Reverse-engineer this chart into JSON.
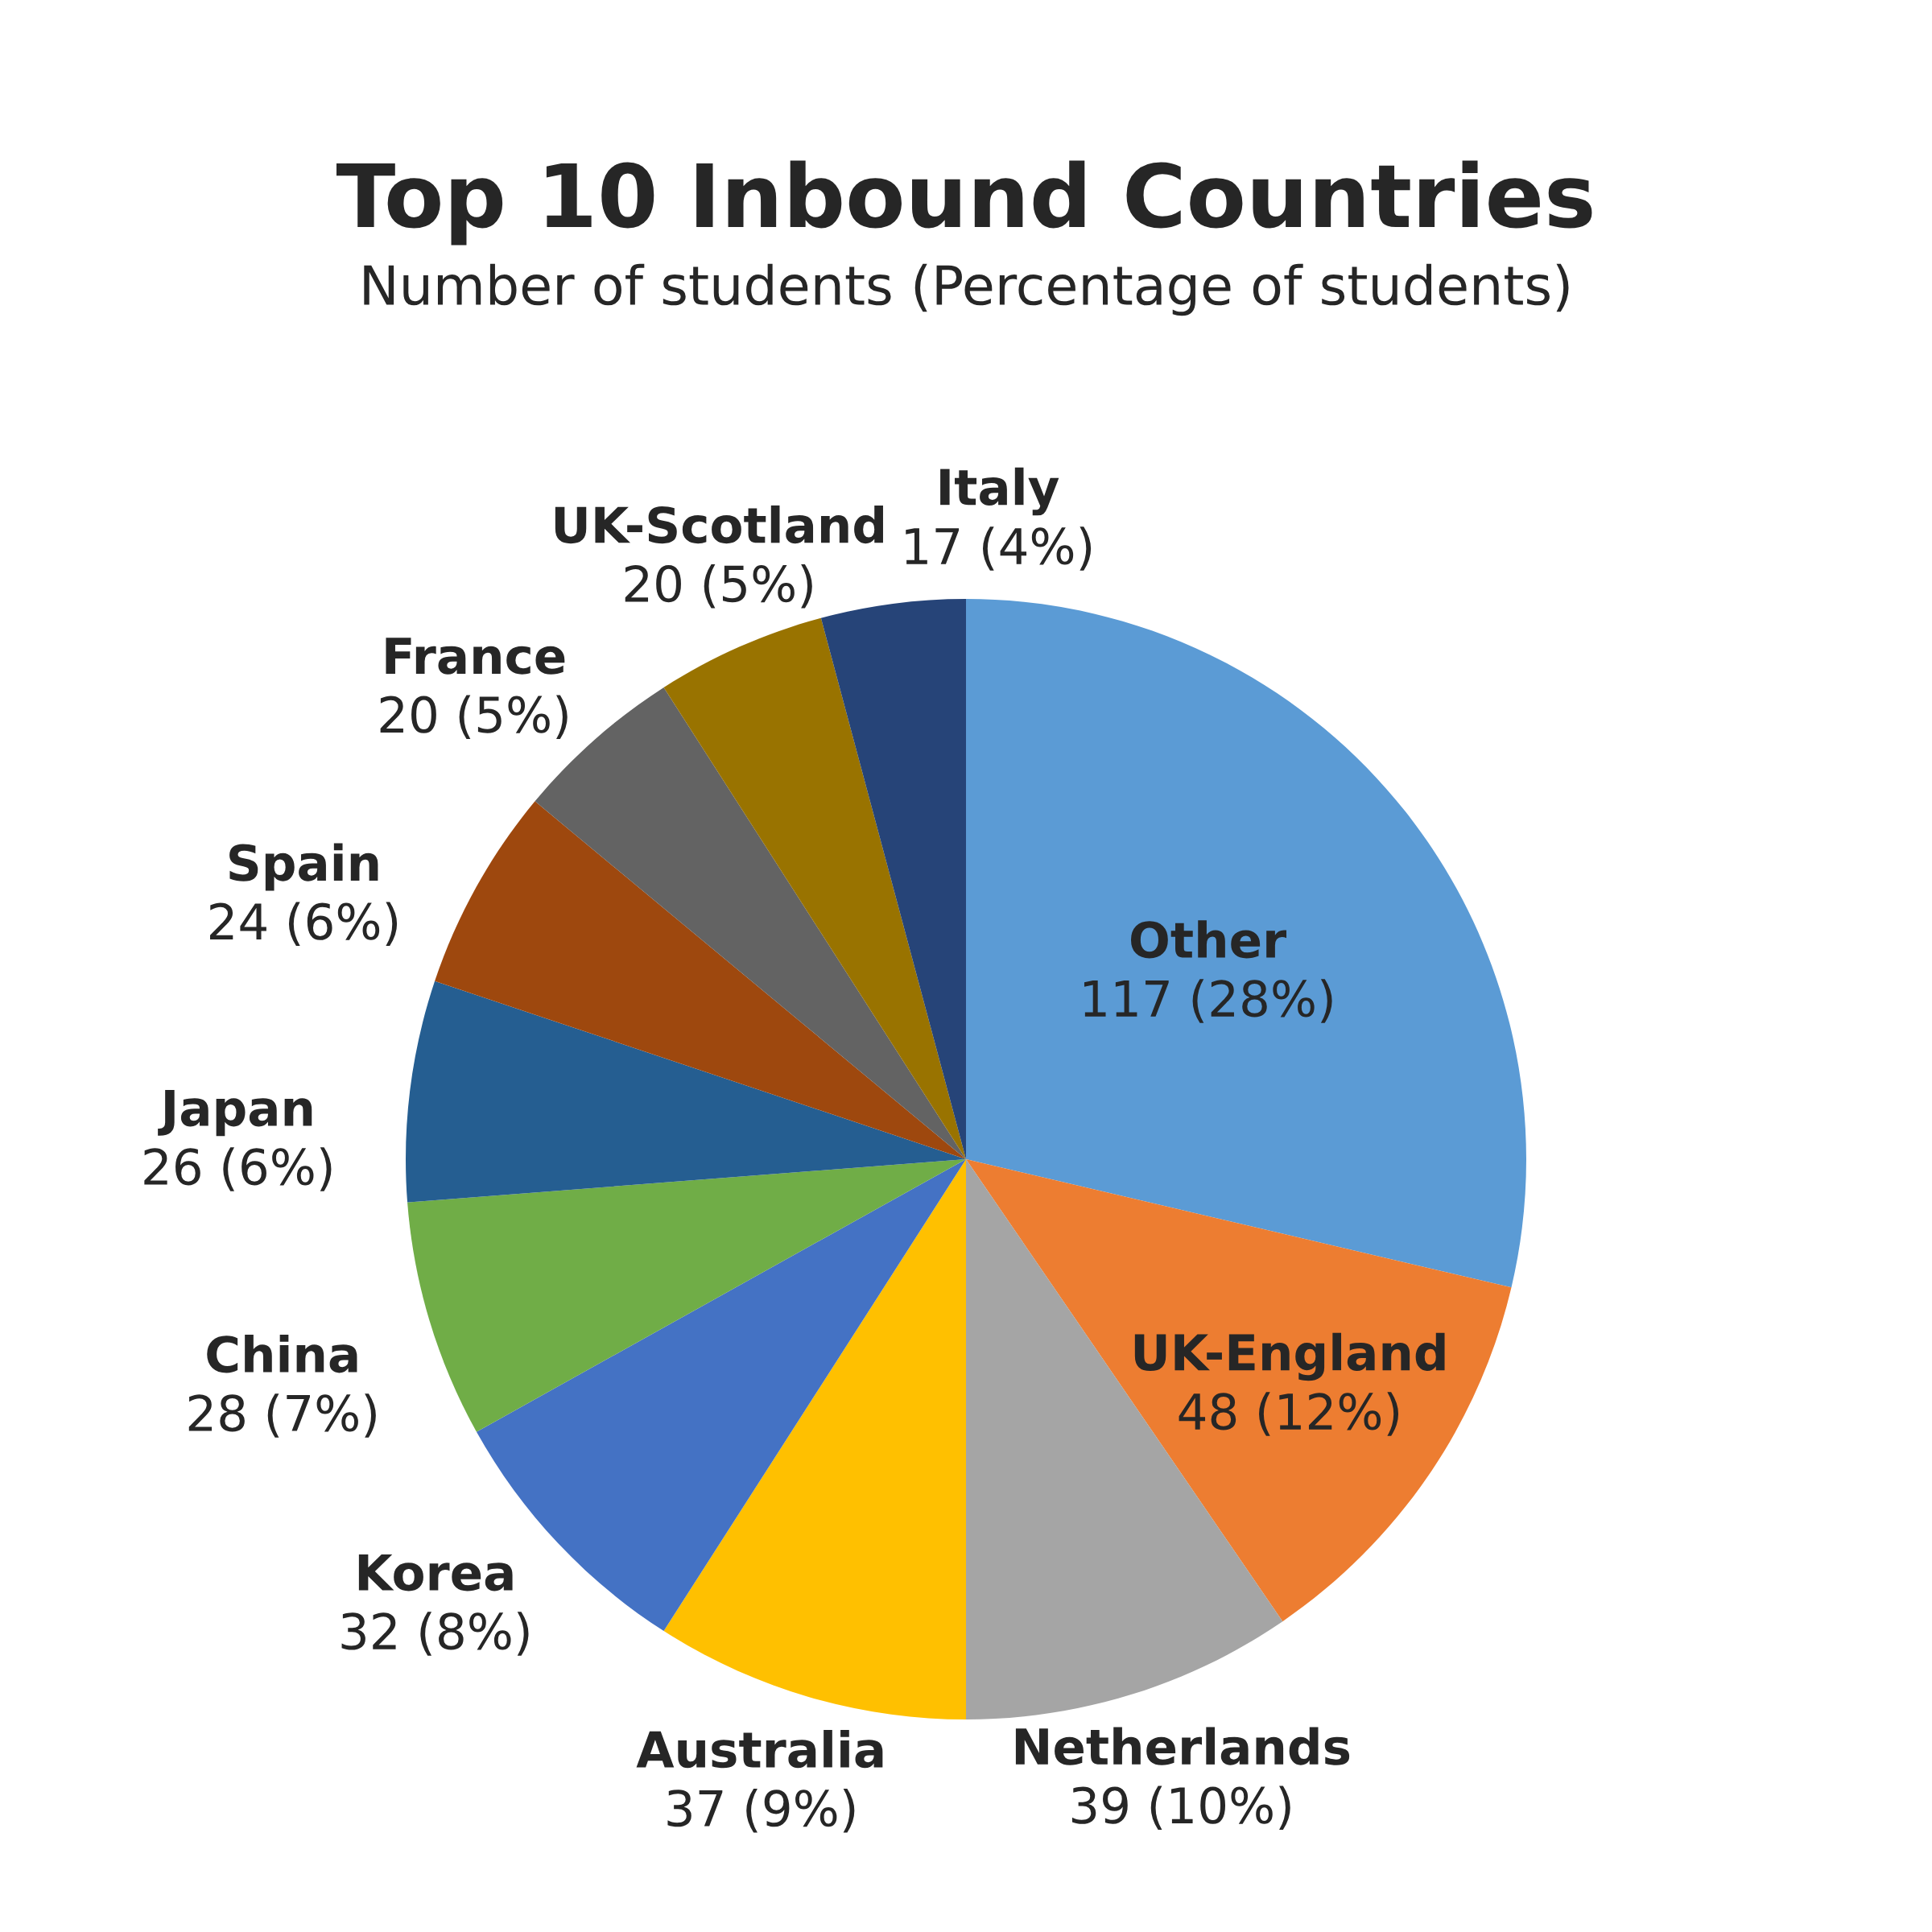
{
  "chart_data": {
    "type": "pie",
    "title": "Top 10 Inbound Countries",
    "subtitle": "Number of students (Percentage of students)",
    "categories": [
      "Other",
      "UK-England",
      "Netherlands",
      "Australia",
      "Korea",
      "China",
      "Japan",
      "Spain",
      "France",
      "UK-Scotland",
      "Italy"
    ],
    "values": [
      117,
      48,
      39,
      37,
      32,
      28,
      26,
      24,
      20,
      20,
      17
    ],
    "value_labels": [
      "117 (28%)",
      "48 (12%)",
      "39 (10%)",
      "37 (9%)",
      "32 (8%)",
      "28 (7%)",
      "26 (6%)",
      "24 (6%)",
      "20 (5%)",
      "20 (5%)",
      "17 (4%)"
    ],
    "colors": [
      "#5b9bd5",
      "#ed7d31",
      "#a5a5a5",
      "#ffc000",
      "#4472c4",
      "#70ad47",
      "#255e91",
      "#9e480e",
      "#636363",
      "#997300",
      "#264478"
    ],
    "legend": false
  }
}
